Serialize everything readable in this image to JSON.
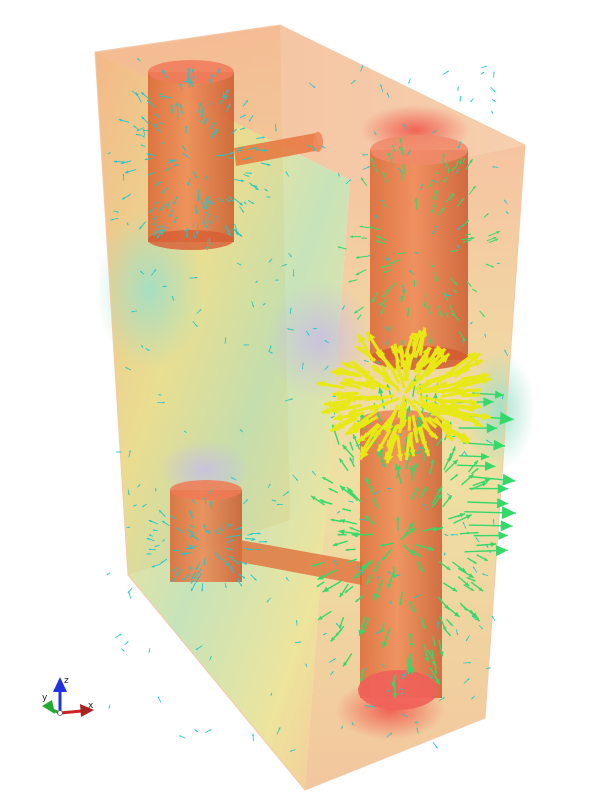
{
  "scene": {
    "background": "#ffffff",
    "colors": {
      "field_hot": "#f06a5c",
      "field_warm": "#f2b07a",
      "field_mid": "#e8e07a",
      "field_cool": "#8fd6b8",
      "field_cold": "#b8b6e6",
      "conductor": "#e5703c",
      "arrow_weak": "#22c7c7",
      "arrow_mid": "#34d96a",
      "arrow_strong": "#e8e817"
    }
  },
  "orientation_axes": {
    "x_label": "x",
    "y_label": "y",
    "z_label": "z",
    "x_color": "#cc2222",
    "y_color": "#22aa33",
    "z_color": "#2233dd"
  }
}
